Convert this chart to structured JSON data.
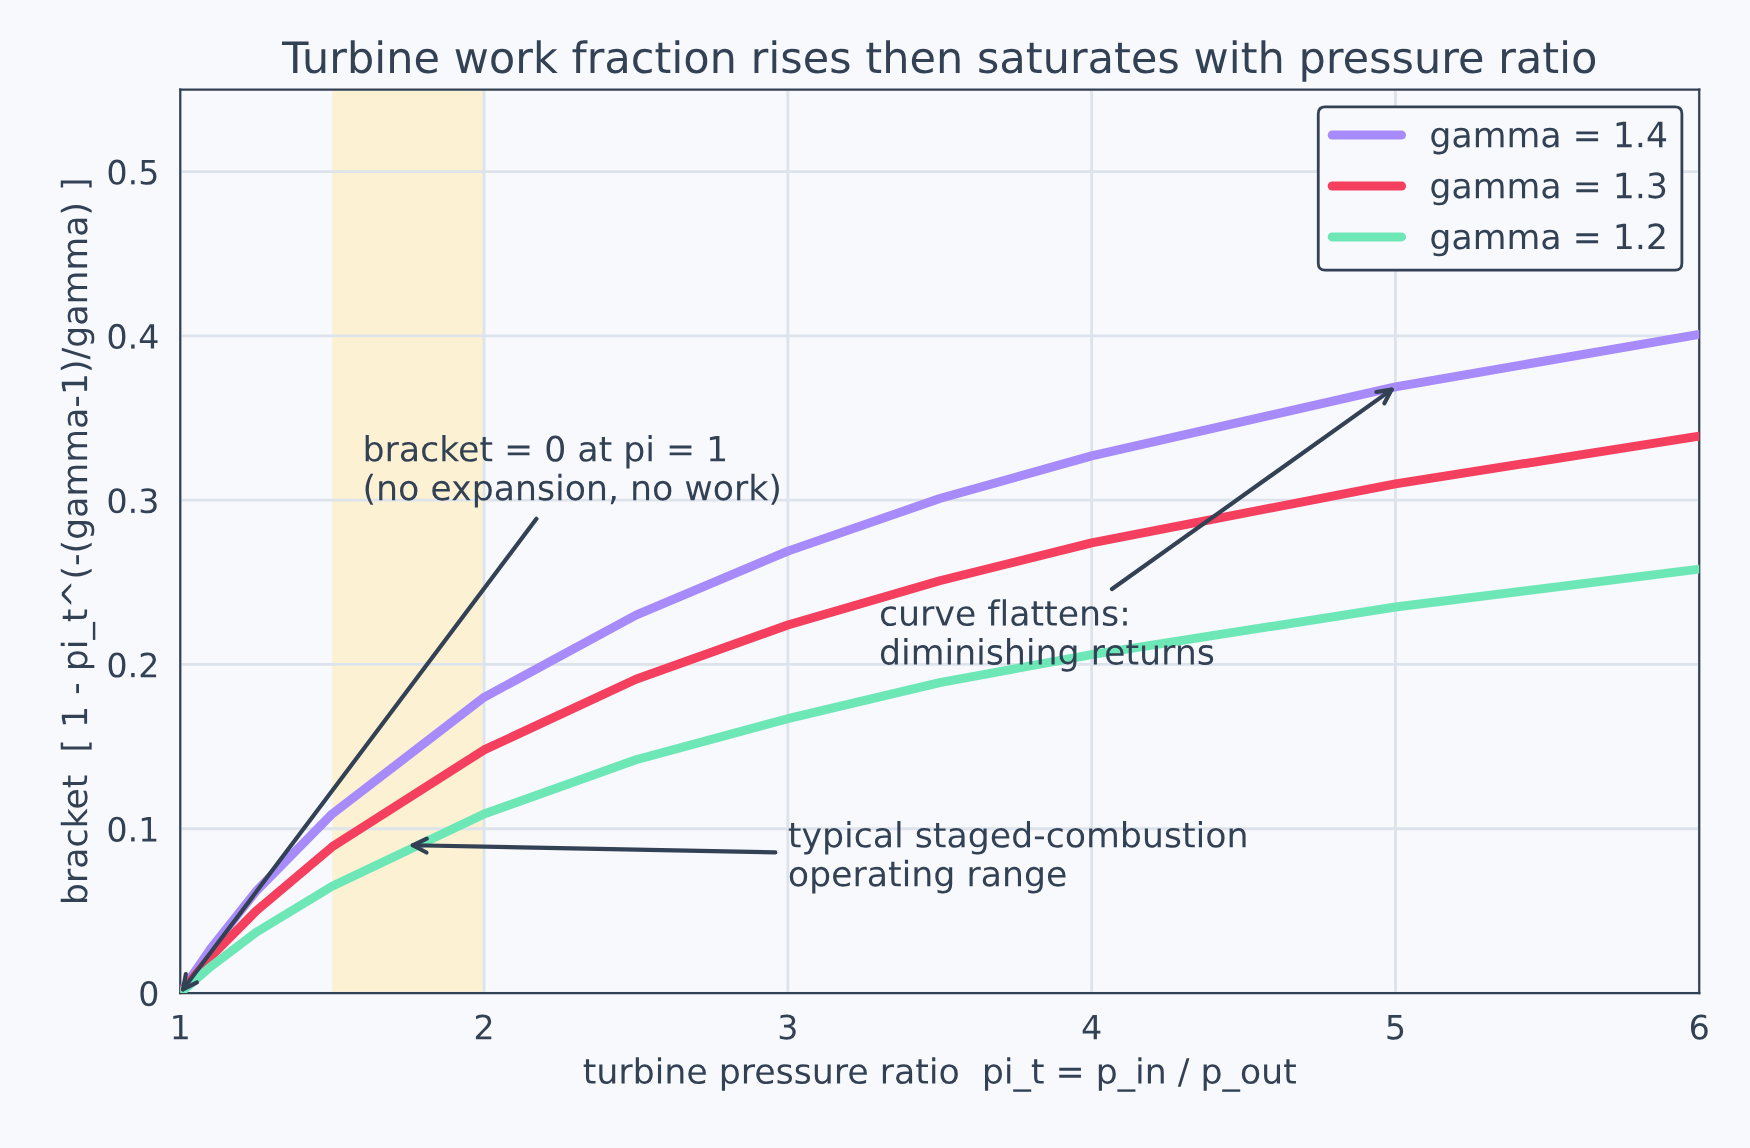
{
  "chart_data": {
    "type": "line",
    "title": "Turbine work fraction rises then saturates with pressure ratio",
    "xlabel": "turbine pressure ratio  pi_t = p_in / p_out",
    "ylabel": "bracket  [ 1 - pi_t^(-(gamma-1)/gamma) ]",
    "x": [
      1,
      1.1,
      1.25,
      1.5,
      2,
      2.5,
      3,
      3.5,
      4,
      5,
      6
    ],
    "series": [
      {
        "name": "gamma = 1.4",
        "color": "#a78bfa",
        "values": [
          0,
          0.027,
          0.062,
          0.109,
          0.18,
          0.23,
          0.269,
          0.301,
          0.327,
          0.369,
          0.401
        ]
      },
      {
        "name": "gamma = 1.3",
        "color": "#f43f5e",
        "values": [
          0,
          0.022,
          0.05,
          0.089,
          0.148,
          0.191,
          0.224,
          0.251,
          0.274,
          0.31,
          0.339
        ]
      },
      {
        "name": "gamma = 1.2",
        "color": "#6ee7b7",
        "values": [
          0,
          0.016,
          0.037,
          0.065,
          0.109,
          0.142,
          0.167,
          0.189,
          0.206,
          0.235,
          0.258
        ]
      }
    ],
    "xlim": [
      1,
      6
    ],
    "ylim": [
      0,
      0.55
    ],
    "xticks": [
      1,
      2,
      3,
      4,
      5,
      6
    ],
    "yticks": [
      0,
      0.1,
      0.2,
      0.3,
      0.4,
      0.5
    ],
    "bands": [
      {
        "axis": "x",
        "from": 1.5,
        "to": 2,
        "color": "#fcefc7"
      }
    ],
    "annotations": [
      {
        "text": "bracket = 0 at pi = 1\n(no expansion, no work)",
        "x": 1,
        "y": 0
      },
      {
        "text": "curve flattens:\ndiminishing returns",
        "x": 5,
        "y": 0.369
      },
      {
        "text": "typical staged-combustion\noperating range",
        "x": 1.75,
        "y": 0.09
      }
    ],
    "grid": true,
    "legend": "top right",
    "marker": "none",
    "line_style": "solid"
  }
}
